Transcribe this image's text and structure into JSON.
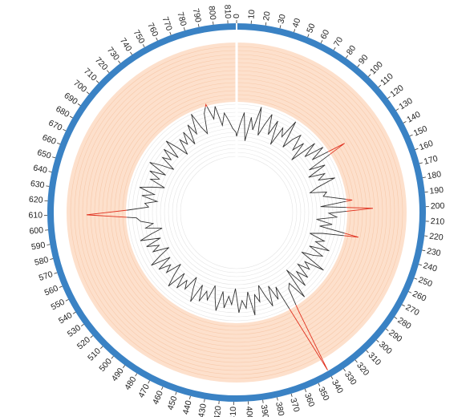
{
  "chart_data": {
    "type": "radial_line",
    "x": [
      0,
      5,
      10,
      15,
      20,
      25,
      30,
      35,
      40,
      45,
      50,
      55,
      60,
      65,
      70,
      75,
      80,
      85,
      90,
      95,
      100,
      105,
      110,
      115,
      120,
      125,
      130,
      135,
      140,
      145,
      150,
      155,
      160,
      165,
      170,
      175,
      180,
      185,
      190,
      195,
      200,
      205,
      210,
      215,
      220,
      225,
      230,
      235,
      240,
      245,
      250,
      255,
      260,
      265,
      270,
      275,
      280,
      285,
      290,
      295,
      300,
      305,
      310,
      315,
      320,
      325,
      330,
      335,
      340,
      345,
      350,
      355,
      360,
      365,
      370,
      375,
      380,
      385,
      390,
      395,
      400,
      405,
      410,
      415,
      420,
      425,
      430,
      435,
      440,
      445,
      450,
      455,
      460,
      465,
      470,
      475,
      480,
      485,
      490,
      495,
      500,
      505,
      510,
      515,
      520,
      525,
      530,
      535,
      540,
      545,
      550,
      555,
      560,
      565,
      570,
      575,
      580,
      585,
      590,
      595,
      600,
      605,
      610,
      615,
      620,
      625,
      630,
      635,
      640,
      645,
      650,
      655,
      660,
      665,
      670,
      675,
      680,
      685,
      690,
      695,
      700,
      705,
      710,
      715,
      720,
      725,
      730,
      735,
      740,
      745,
      750,
      755,
      760,
      765,
      770,
      775,
      780,
      785,
      790,
      795,
      800,
      805,
      810,
      815
    ],
    "series": [
      {
        "color": "#333333",
        "over_color": "#e0301e",
        "values": [
          30,
          45,
          60,
          25,
          55,
          40,
          70,
          35,
          50,
          65,
          40,
          60,
          30,
          55,
          45,
          70,
          35,
          50,
          60,
          40,
          55,
          30,
          65,
          45,
          70,
          50,
          95,
          40,
          60,
          35,
          55,
          45,
          65,
          40,
          30,
          50,
          45,
          60,
          80,
          40,
          105,
          50,
          60,
          35,
          55,
          40,
          90,
          45,
          30,
          50,
          40,
          60,
          35,
          55,
          45,
          30,
          65,
          40,
          50,
          35,
          55,
          40,
          60,
          30,
          70,
          45,
          50,
          80,
          162,
          40,
          55,
          35,
          60,
          45,
          30,
          50,
          40,
          65,
          35,
          55,
          45,
          60,
          30,
          50,
          40,
          55,
          35,
          60,
          45,
          30,
          50,
          40,
          55,
          35,
          60,
          45,
          30,
          50,
          40,
          55,
          35,
          60,
          45,
          30,
          50,
          40,
          55,
          35,
          60,
          45,
          30,
          50,
          40,
          55,
          35,
          60,
          45,
          30,
          50,
          40,
          55,
          60,
          122,
          70,
          45,
          50,
          35,
          55,
          40,
          60,
          45,
          30,
          50,
          40,
          55,
          35,
          60,
          45,
          30,
          50,
          40,
          55,
          35,
          60,
          45,
          30,
          50,
          40,
          55,
          35,
          60,
          45,
          70,
          50,
          40,
          65,
          75,
          55,
          70,
          45,
          60,
          50,
          40,
          35
        ]
      }
    ],
    "threshold": 72,
    "xlim": [
      0,
      816
    ],
    "ylim": [
      0,
      170
    ],
    "xticks": [
      0,
      10,
      20,
      30,
      40,
      50,
      60,
      70,
      80,
      90,
      100,
      110,
      120,
      130,
      140,
      150,
      160,
      170,
      180,
      190,
      200,
      210,
      220,
      230,
      240,
      250,
      260,
      270,
      280,
      290,
      300,
      310,
      320,
      330,
      340,
      350,
      360,
      370,
      380,
      390,
      400,
      410,
      420,
      430,
      440,
      450,
      460,
      470,
      480,
      490,
      500,
      510,
      520,
      530,
      540,
      550,
      560,
      570,
      580,
      590,
      600,
      610,
      620,
      630,
      640,
      650,
      660,
      670,
      680,
      690,
      700,
      710,
      720,
      730,
      740,
      750,
      760,
      770,
      780,
      790,
      800,
      810
    ],
    "ring_color": "#3a82c4",
    "band_color": "#fde0cc"
  }
}
